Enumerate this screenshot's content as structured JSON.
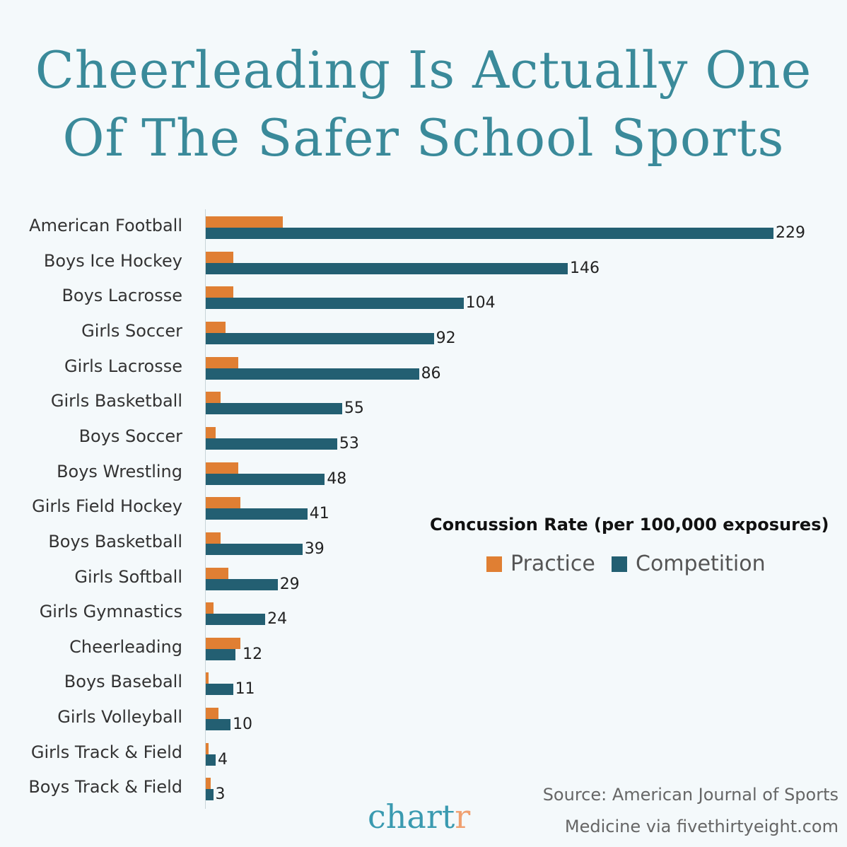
{
  "title": [
    "Cheerleading Is Actually One",
    "Of The Safer School Sports"
  ],
  "chart_data": {
    "type": "bar",
    "orientation": "horizontal",
    "title": "Cheerleading Is Actually One Of The Safer School Sports",
    "legend_title": "Concussion Rate (per 100,000 exposures)",
    "legend_position": "right",
    "grid": false,
    "xlim": [
      0,
      229
    ],
    "categories": [
      "American Football",
      "Boys Ice Hockey",
      "Boys Lacrosse",
      "Girls Soccer",
      "Girls Lacrosse",
      "Girls Basketball",
      "Boys Soccer",
      "Boys Wrestling",
      "Girls Field Hockey",
      "Boys Basketball",
      "Girls Softball",
      "Girls Gymnastics",
      "Cheerleading",
      "Boys Baseball",
      "Girls Volleyball",
      "Girls Track & Field",
      "Boys Track & Field"
    ],
    "series": [
      {
        "name": "Practice",
        "color": "#e07f33",
        "values": [
          31,
          11,
          11,
          8,
          13,
          6,
          4,
          13,
          14,
          6,
          9,
          3,
          14,
          1,
          5,
          1,
          2
        ]
      },
      {
        "name": "Competition",
        "color": "#235f72",
        "values": [
          229,
          146,
          104,
          92,
          86,
          55,
          53,
          48,
          41,
          39,
          29,
          24,
          12,
          11,
          10,
          4,
          3
        ]
      }
    ]
  },
  "source": [
    "Source: American Journal of Sports",
    "Medicine via fivethirtyeight.com"
  ],
  "logo": {
    "main": "chart",
    "accent": "r"
  }
}
